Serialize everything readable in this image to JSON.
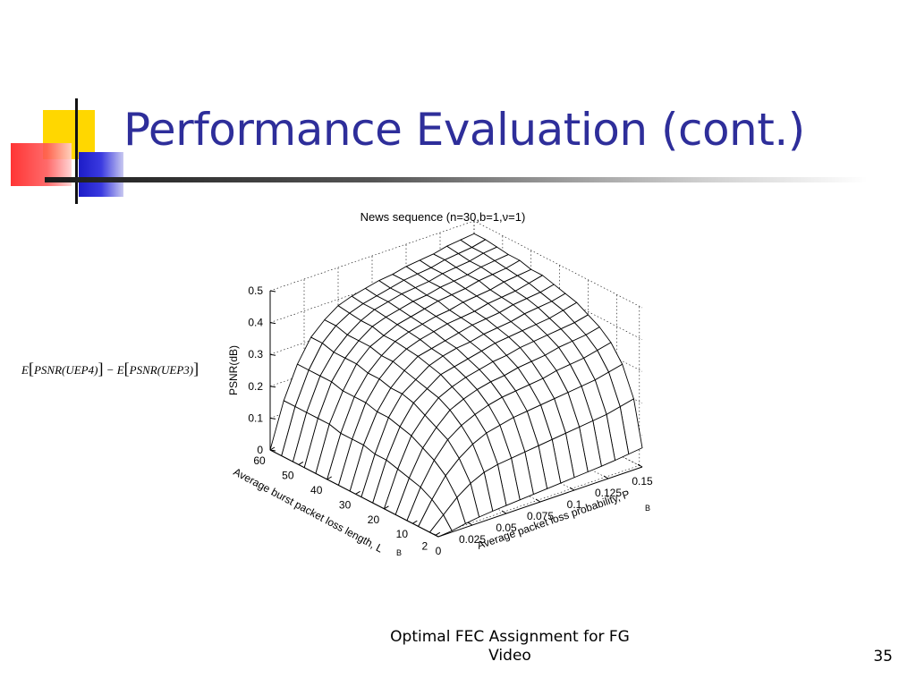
{
  "slide": {
    "title": "Performance Evaluation (cont.)",
    "footer": "Optimal FEC Assignment for FG Video",
    "page_number": "35",
    "formula_parts": [
      "E",
      "[",
      "PSNR(UEP4)",
      "]",
      " − E",
      "[",
      "PSNR(UEP3)",
      "]"
    ],
    "colors": {
      "title": "#2e2e9a",
      "deco_yellow": "#ffd700",
      "deco_red": "#ff2a2a",
      "deco_blue": "#2020d0"
    }
  },
  "chart_data": {
    "type": "surface",
    "title": "News sequence (n=30,b=1,ν=1)",
    "zlabel": "PSNR(dB)",
    "xlabel": "Average burst packet loss length, L",
    "xlabel_sub": "B",
    "ylabel": "Average packet loss probability, P",
    "ylabel_sub": "B",
    "z_ticks": [
      "0",
      "0.1",
      "0.2",
      "0.3",
      "0.4",
      "0.5"
    ],
    "x_ticks": [
      "2",
      "10",
      "20",
      "30",
      "40",
      "50",
      "60"
    ],
    "y_ticks": [
      "0",
      "0.025",
      "0.05",
      "0.075",
      "0.1",
      "0.125",
      "0.15"
    ],
    "x_range": [
      1,
      60
    ],
    "y_range": [
      0,
      0.15
    ],
    "z_range": [
      0,
      0.5
    ],
    "grid": true,
    "mesh_color": "#000000",
    "x": [
      1,
      4,
      8,
      12,
      16,
      20,
      24,
      28,
      32,
      36,
      40,
      44,
      48,
      52,
      56,
      60
    ],
    "y": [
      0,
      0.01,
      0.02,
      0.03,
      0.04,
      0.05,
      0.06,
      0.07,
      0.08,
      0.09,
      0.1,
      0.11,
      0.12,
      0.13,
      0.14,
      0.15
    ],
    "z": [
      [
        0,
        0.004,
        0.012,
        0.018,
        0.022,
        0.025,
        0.028,
        0.031,
        0.034,
        0.037,
        0.04,
        0.043,
        0.046,
        0.05,
        0.055,
        0.06
      ],
      [
        0,
        0.04,
        0.08,
        0.11,
        0.13,
        0.14,
        0.145,
        0.15,
        0.155,
        0.16,
        0.165,
        0.17,
        0.175,
        0.18,
        0.19,
        0.2
      ],
      [
        0,
        0.07,
        0.13,
        0.17,
        0.2,
        0.22,
        0.23,
        0.24,
        0.245,
        0.25,
        0.255,
        0.26,
        0.265,
        0.27,
        0.28,
        0.29
      ],
      [
        0,
        0.09,
        0.16,
        0.21,
        0.24,
        0.26,
        0.275,
        0.285,
        0.29,
        0.295,
        0.3,
        0.31,
        0.315,
        0.32,
        0.33,
        0.34
      ],
      [
        0,
        0.1,
        0.18,
        0.23,
        0.27,
        0.29,
        0.305,
        0.315,
        0.32,
        0.33,
        0.335,
        0.34,
        0.35,
        0.355,
        0.36,
        0.37
      ],
      [
        0,
        0.11,
        0.2,
        0.25,
        0.29,
        0.31,
        0.325,
        0.335,
        0.345,
        0.35,
        0.36,
        0.365,
        0.37,
        0.375,
        0.38,
        0.39
      ],
      [
        0,
        0.12,
        0.21,
        0.27,
        0.3,
        0.33,
        0.34,
        0.35,
        0.36,
        0.37,
        0.375,
        0.38,
        0.385,
        0.39,
        0.4,
        0.41
      ],
      [
        0,
        0.12,
        0.22,
        0.28,
        0.31,
        0.34,
        0.355,
        0.365,
        0.37,
        0.38,
        0.385,
        0.39,
        0.4,
        0.405,
        0.41,
        0.42
      ],
      [
        0,
        0.13,
        0.22,
        0.28,
        0.32,
        0.35,
        0.36,
        0.37,
        0.38,
        0.39,
        0.395,
        0.4,
        0.41,
        0.415,
        0.42,
        0.43
      ],
      [
        0,
        0.13,
        0.23,
        0.29,
        0.33,
        0.355,
        0.37,
        0.38,
        0.39,
        0.395,
        0.4,
        0.41,
        0.415,
        0.42,
        0.43,
        0.44
      ],
      [
        0,
        0.13,
        0.23,
        0.29,
        0.33,
        0.36,
        0.375,
        0.385,
        0.395,
        0.4,
        0.41,
        0.415,
        0.42,
        0.43,
        0.435,
        0.44
      ],
      [
        0,
        0.14,
        0.23,
        0.3,
        0.34,
        0.36,
        0.38,
        0.39,
        0.4,
        0.41,
        0.415,
        0.42,
        0.43,
        0.435,
        0.44,
        0.45
      ],
      [
        0,
        0.14,
        0.24,
        0.3,
        0.34,
        0.37,
        0.385,
        0.395,
        0.405,
        0.41,
        0.42,
        0.425,
        0.43,
        0.44,
        0.445,
        0.45
      ],
      [
        0,
        0.14,
        0.24,
        0.3,
        0.34,
        0.37,
        0.39,
        0.4,
        0.41,
        0.415,
        0.42,
        0.43,
        0.435,
        0.44,
        0.45,
        0.455
      ],
      [
        0,
        0.14,
        0.24,
        0.31,
        0.35,
        0.375,
        0.39,
        0.4,
        0.41,
        0.42,
        0.425,
        0.43,
        0.44,
        0.445,
        0.45,
        0.46
      ],
      [
        0,
        0.14,
        0.24,
        0.31,
        0.35,
        0.38,
        0.395,
        0.405,
        0.415,
        0.42,
        0.43,
        0.435,
        0.44,
        0.45,
        0.455,
        0.46
      ]
    ]
  }
}
